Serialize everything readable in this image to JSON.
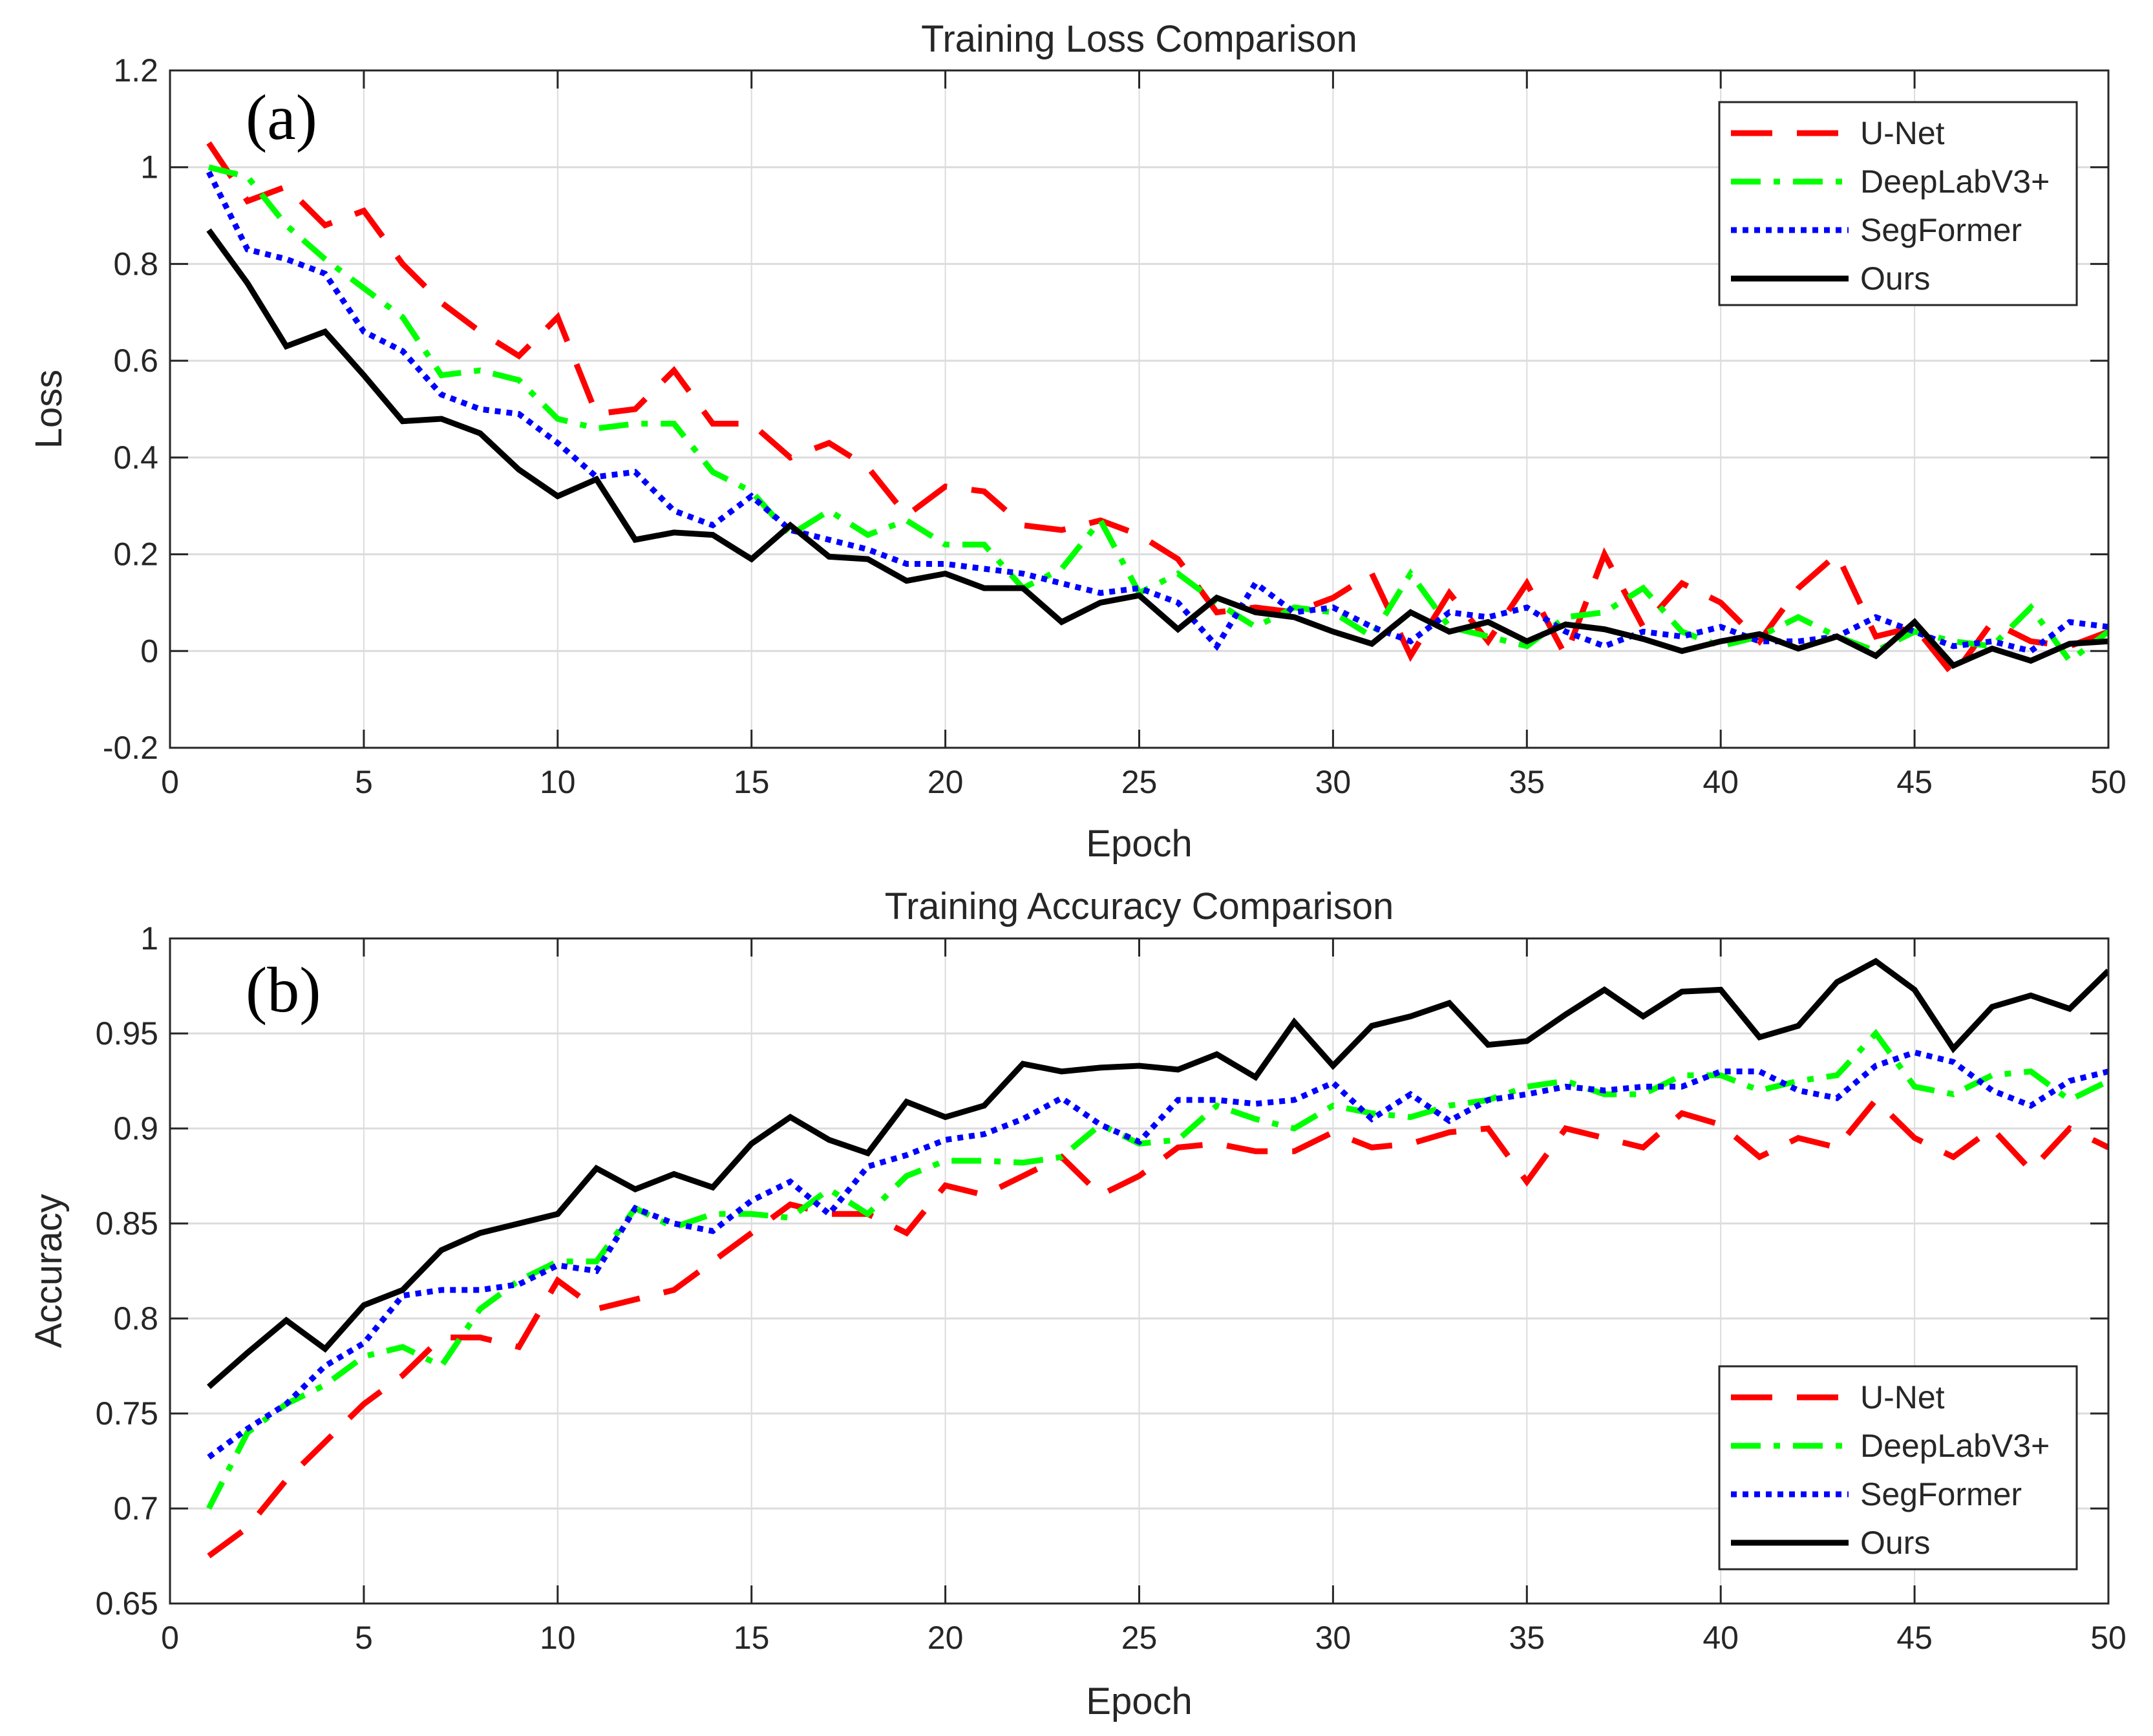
{
  "chart_data": [
    {
      "type": "line",
      "title": "Training Loss Comparison",
      "panel_label": "(a)",
      "xlabel": "Epoch",
      "ylabel": "Loss",
      "xlim": [
        0,
        50
      ],
      "ylim": [
        -0.2,
        1.2
      ],
      "xticks": [
        0,
        5,
        10,
        15,
        20,
        25,
        30,
        35,
        40,
        45,
        50
      ],
      "yticks": [
        -0.2,
        0,
        0.2,
        0.4,
        0.6,
        0.8,
        1,
        1.2
      ],
      "ytick_labels": [
        "-0.2",
        "0",
        "0.2",
        "0.4",
        "0.6",
        "0.8",
        "1",
        "1.2"
      ],
      "grid": true,
      "legend_position": "top-right",
      "x": [
        1,
        2,
        3,
        4,
        5,
        6,
        7,
        8,
        9,
        10,
        11,
        12,
        13,
        14,
        15,
        16,
        17,
        18,
        19,
        20,
        21,
        22,
        23,
        24,
        25,
        26,
        27,
        28,
        29,
        30,
        31,
        32,
        33,
        34,
        35,
        36,
        37,
        38,
        39,
        40,
        41,
        42,
        43,
        44,
        45,
        46,
        47,
        48,
        49,
        50
      ],
      "series": [
        {
          "name": "U-Net",
          "color": "#ff0000",
          "style": "dashed",
          "values": [
            1.05,
            0.93,
            0.96,
            0.88,
            0.91,
            0.8,
            0.72,
            0.66,
            0.61,
            0.69,
            0.49,
            0.5,
            0.58,
            0.47,
            0.47,
            0.4,
            0.43,
            0.38,
            0.28,
            0.34,
            0.33,
            0.26,
            0.25,
            0.27,
            0.24,
            0.19,
            0.08,
            0.09,
            0.08,
            0.11,
            0.16,
            -0.01,
            0.12,
            0.02,
            0.14,
            -0.01,
            0.2,
            0.05,
            0.14,
            0.1,
            0.02,
            0.13,
            0.2,
            0.03,
            0.05,
            -0.05,
            0.06,
            0.02,
            0.01,
            0.04
          ]
        },
        {
          "name": "DeepLabV3+",
          "color": "#00ff00",
          "style": "dashdot",
          "values": [
            1.0,
            0.98,
            0.88,
            0.81,
            0.75,
            0.69,
            0.57,
            0.58,
            0.56,
            0.48,
            0.46,
            0.47,
            0.47,
            0.37,
            0.33,
            0.24,
            0.29,
            0.24,
            0.27,
            0.22,
            0.22,
            0.13,
            0.17,
            0.27,
            0.12,
            0.16,
            0.1,
            0.05,
            0.09,
            0.08,
            0.03,
            0.16,
            0.05,
            0.03,
            0.01,
            0.07,
            0.08,
            0.13,
            0.04,
            0.01,
            0.03,
            0.07,
            0.03,
            0.0,
            0.04,
            0.02,
            0.01,
            0.09,
            -0.02,
            0.04
          ]
        },
        {
          "name": "SegFormer",
          "color": "#0000ff",
          "style": "dotted",
          "values": [
            0.99,
            0.83,
            0.81,
            0.78,
            0.66,
            0.62,
            0.53,
            0.5,
            0.49,
            0.43,
            0.36,
            0.37,
            0.29,
            0.26,
            0.32,
            0.25,
            0.23,
            0.21,
            0.18,
            0.18,
            0.17,
            0.16,
            0.14,
            0.12,
            0.13,
            0.1,
            0.01,
            0.14,
            0.08,
            0.09,
            0.05,
            0.02,
            0.08,
            0.07,
            0.09,
            0.04,
            0.01,
            0.04,
            0.03,
            0.05,
            0.02,
            0.02,
            0.03,
            0.07,
            0.04,
            0.01,
            0.02,
            0.0,
            0.06,
            0.05
          ]
        },
        {
          "name": "Ours",
          "color": "#000000",
          "style": "solid",
          "values": [
            0.87,
            0.76,
            0.63,
            0.66,
            0.57,
            0.475,
            0.48,
            0.45,
            0.375,
            0.32,
            0.355,
            0.23,
            0.245,
            0.24,
            0.19,
            0.26,
            0.195,
            0.19,
            0.145,
            0.16,
            0.13,
            0.13,
            0.06,
            0.1,
            0.115,
            0.045,
            0.11,
            0.08,
            0.07,
            0.04,
            0.015,
            0.08,
            0.04,
            0.06,
            0.02,
            0.055,
            0.045,
            0.025,
            0.0,
            0.02,
            0.035,
            0.005,
            0.03,
            -0.01,
            0.06,
            -0.03,
            0.005,
            -0.02,
            0.015,
            0.02
          ]
        }
      ]
    },
    {
      "type": "line",
      "title": "Training Accuracy Comparison",
      "panel_label": "(b)",
      "xlabel": "Epoch",
      "ylabel": "Accuracy",
      "xlim": [
        0,
        50
      ],
      "ylim": [
        0.65,
        1
      ],
      "xticks": [
        0,
        5,
        10,
        15,
        20,
        25,
        30,
        35,
        40,
        45,
        50
      ],
      "yticks": [
        0.65,
        0.7,
        0.75,
        0.8,
        0.85,
        0.9,
        0.95,
        1
      ],
      "ytick_labels": [
        "0.65",
        "0.7",
        "0.75",
        "0.8",
        "0.85",
        "0.9",
        "0.95",
        "1"
      ],
      "grid": true,
      "legend_position": "bottom-right",
      "x": [
        1,
        2,
        3,
        4,
        5,
        6,
        7,
        8,
        9,
        10,
        11,
        12,
        13,
        14,
        15,
        16,
        17,
        18,
        19,
        20,
        21,
        22,
        23,
        24,
        25,
        26,
        27,
        28,
        29,
        30,
        31,
        32,
        33,
        34,
        35,
        36,
        37,
        38,
        39,
        40,
        41,
        42,
        43,
        44,
        45,
        46,
        47,
        48,
        49,
        50
      ],
      "series": [
        {
          "name": "U-Net",
          "color": "#ff0000",
          "style": "dashed",
          "values": [
            0.675,
            0.69,
            0.715,
            0.735,
            0.755,
            0.77,
            0.79,
            0.79,
            0.785,
            0.82,
            0.805,
            0.81,
            0.815,
            0.83,
            0.845,
            0.86,
            0.855,
            0.855,
            0.845,
            0.87,
            0.865,
            0.875,
            0.885,
            0.865,
            0.875,
            0.89,
            0.892,
            0.888,
            0.888,
            0.898,
            0.89,
            0.892,
            0.898,
            0.9,
            0.872,
            0.9,
            0.895,
            0.89,
            0.908,
            0.902,
            0.885,
            0.895,
            0.89,
            0.915,
            0.895,
            0.885,
            0.9,
            0.878,
            0.9,
            0.89
          ]
        },
        {
          "name": "DeepLabV3+",
          "color": "#00ff00",
          "style": "dashdot",
          "values": [
            0.7,
            0.74,
            0.755,
            0.765,
            0.78,
            0.785,
            0.775,
            0.805,
            0.82,
            0.83,
            0.83,
            0.858,
            0.848,
            0.855,
            0.855,
            0.853,
            0.868,
            0.855,
            0.875,
            0.883,
            0.883,
            0.882,
            0.885,
            0.902,
            0.892,
            0.894,
            0.912,
            0.905,
            0.9,
            0.912,
            0.908,
            0.906,
            0.912,
            0.915,
            0.922,
            0.925,
            0.918,
            0.918,
            0.928,
            0.928,
            0.92,
            0.925,
            0.928,
            0.95,
            0.922,
            0.918,
            0.928,
            0.93,
            0.915,
            0.925
          ]
        },
        {
          "name": "SegFormer",
          "color": "#0000ff",
          "style": "dotted",
          "values": [
            0.727,
            0.742,
            0.755,
            0.775,
            0.787,
            0.812,
            0.815,
            0.815,
            0.818,
            0.828,
            0.825,
            0.858,
            0.85,
            0.846,
            0.862,
            0.872,
            0.855,
            0.88,
            0.886,
            0.894,
            0.897,
            0.905,
            0.916,
            0.902,
            0.893,
            0.915,
            0.915,
            0.913,
            0.915,
            0.924,
            0.905,
            0.918,
            0.904,
            0.915,
            0.918,
            0.922,
            0.92,
            0.922,
            0.922,
            0.93,
            0.93,
            0.92,
            0.916,
            0.933,
            0.94,
            0.935,
            0.92,
            0.912,
            0.925,
            0.93
          ]
        },
        {
          "name": "Ours",
          "color": "#000000",
          "style": "solid",
          "values": [
            0.764,
            0.782,
            0.799,
            0.784,
            0.807,
            0.815,
            0.836,
            0.845,
            0.85,
            0.855,
            0.879,
            0.868,
            0.876,
            0.869,
            0.892,
            0.906,
            0.894,
            0.887,
            0.914,
            0.906,
            0.912,
            0.934,
            0.93,
            0.932,
            0.933,
            0.931,
            0.939,
            0.927,
            0.956,
            0.933,
            0.954,
            0.959,
            0.966,
            0.944,
            0.946,
            0.96,
            0.973,
            0.959,
            0.972,
            0.973,
            0.948,
            0.954,
            0.977,
            0.988,
            0.973,
            0.942,
            0.964,
            0.97,
            0.963,
            0.983
          ]
        }
      ]
    }
  ]
}
